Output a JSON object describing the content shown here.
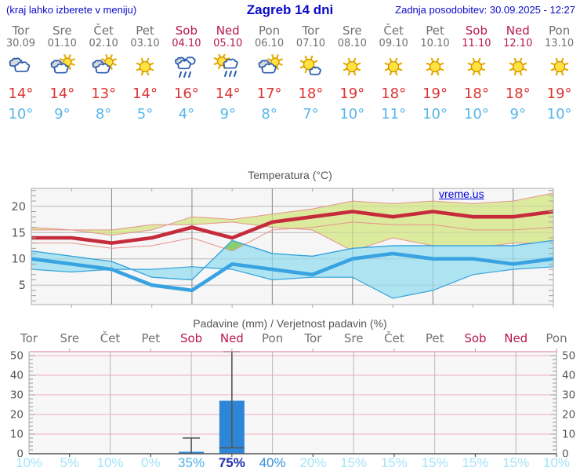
{
  "header": {
    "left_note": "(kraj lahko izberete v meniju)",
    "title": "Zagreb 14 dni",
    "updated": "Zadnja posodobitev: 30.09.2025 - 12:27"
  },
  "colors": {
    "header_blue": "#0a0ac8",
    "day_gray": "#707070",
    "weekend_crimson": "#b81650",
    "temp_high_red": "#dd3333",
    "temp_low_blue": "#56b6ea",
    "line_red": "#c62b3c",
    "line_blue": "#39a3e2",
    "band_green": "#dcea9e",
    "band_green_edge": "#e6938d",
    "band_cyan": "#aee4f2",
    "band_cyan_edge": "#35a2dc",
    "overlap_green": "#86cf72",
    "bar_blue": "#2e86d8",
    "whisker_gray": "#555555",
    "grid_pink": "#f2afc1",
    "grid_gray": "#9a9a9a"
  },
  "forecast_days": [
    {
      "day": "Tor",
      "date": "30.09",
      "weekend": false,
      "icon": "cloudy",
      "high": "14°",
      "low": "10°"
    },
    {
      "day": "Sre",
      "date": "01.10",
      "weekend": false,
      "icon": "partly-cloudy",
      "high": "14°",
      "low": "9°"
    },
    {
      "day": "Čet",
      "date": "02.10",
      "weekend": false,
      "icon": "partly-cloudy",
      "high": "13°",
      "low": "8°"
    },
    {
      "day": "Pet",
      "date": "03.10",
      "weekend": false,
      "icon": "sunny",
      "high": "14°",
      "low": "5°"
    },
    {
      "day": "Sob",
      "date": "04.10",
      "weekend": true,
      "icon": "rain",
      "high": "16°",
      "low": "4°"
    },
    {
      "day": "Ned",
      "date": "05.10",
      "weekend": true,
      "icon": "sun-rain",
      "high": "14°",
      "low": "9°"
    },
    {
      "day": "Pon",
      "date": "06.10",
      "weekend": false,
      "icon": "partly-cloudy",
      "high": "17°",
      "low": "8°"
    },
    {
      "day": "Tor",
      "date": "07.10",
      "weekend": false,
      "icon": "mostly-sunny",
      "high": "18°",
      "low": "7°"
    },
    {
      "day": "Sre",
      "date": "08.10",
      "weekend": false,
      "icon": "sunny",
      "high": "19°",
      "low": "10°"
    },
    {
      "day": "Čet",
      "date": "09.10",
      "weekend": false,
      "icon": "sunny",
      "high": "18°",
      "low": "11°"
    },
    {
      "day": "Pet",
      "date": "10.10",
      "weekend": false,
      "icon": "sunny",
      "high": "19°",
      "low": "10°"
    },
    {
      "day": "Sob",
      "date": "11.10",
      "weekend": true,
      "icon": "sunny",
      "high": "18°",
      "low": "10°"
    },
    {
      "day": "Ned",
      "date": "12.10",
      "weekend": true,
      "icon": "sunny",
      "high": "18°",
      "low": "9°"
    },
    {
      "day": "Pon",
      "date": "13.10",
      "weekend": false,
      "icon": "sunny",
      "high": "19°",
      "low": "10°"
    }
  ],
  "chart_data": [
    {
      "type": "area",
      "title": "Temperatura (°C)",
      "watermark": "vreme.us",
      "ylabel": "",
      "ylim": [
        1.3,
        23.4
      ],
      "yticks": [
        5,
        10,
        15,
        20
      ],
      "grid": true,
      "x_days": 14,
      "series": [
        {
          "name": "max-temp",
          "values": [
            14,
            14,
            13,
            14,
            16,
            14,
            17,
            18,
            19,
            18,
            19,
            18,
            18,
            19
          ]
        },
        {
          "name": "max-temp-band-upper",
          "values": [
            15.5,
            15.5,
            14.5,
            15.5,
            18,
            17.5,
            18.5,
            19.5,
            21,
            20.5,
            21,
            20.5,
            21,
            22.5
          ]
        },
        {
          "name": "max-temp-band-lower",
          "values": [
            13,
            13,
            12,
            12.5,
            14,
            11.5,
            15.5,
            16,
            17,
            16.5,
            16.5,
            15.5,
            15.5,
            16
          ]
        },
        {
          "name": "min-temp",
          "values": [
            10,
            9,
            8,
            5,
            4,
            9,
            8,
            7,
            10,
            11,
            10,
            10,
            9,
            10
          ]
        },
        {
          "name": "min-temp-band-upper",
          "values": [
            11.5,
            10.5,
            9.5,
            6.5,
            6,
            13.5,
            11,
            10.5,
            12,
            12.5,
            12.5,
            12.5,
            12.5,
            13.5
          ]
        },
        {
          "name": "min-temp-band-lower",
          "values": [
            8.5,
            8,
            7,
            4,
            2.5,
            6.5,
            6.5,
            6,
            8,
            8.5,
            8,
            8,
            7.5,
            8
          ]
        }
      ]
    },
    {
      "type": "bar",
      "title": "Padavine (mm) / Verjetnost padavin (%)",
      "categories": [
        "Tor",
        "Sre",
        "Čet",
        "Pet",
        "Sob",
        "Ned",
        "Pon",
        "Tor",
        "Sre",
        "Čet",
        "Pet",
        "Sob",
        "Ned",
        "Pon"
      ],
      "weekend_flags": [
        false,
        false,
        false,
        false,
        true,
        true,
        false,
        false,
        false,
        false,
        false,
        true,
        true,
        false
      ],
      "values": [
        0,
        0,
        0,
        0,
        1,
        27,
        0,
        0,
        0,
        0,
        0,
        0,
        0,
        0
      ],
      "whisker_high": [
        null,
        null,
        null,
        null,
        8,
        52,
        null,
        null,
        null,
        null,
        null,
        null,
        null,
        null
      ],
      "median": [
        null,
        null,
        null,
        null,
        null,
        3,
        null,
        null,
        null,
        null,
        null,
        null,
        null,
        null
      ],
      "ylim": [
        0,
        52
      ],
      "yticks": [
        0,
        10,
        20,
        30,
        40,
        50
      ],
      "probabilities": [
        "10%",
        "5%",
        "10%",
        "0%",
        "35%",
        "75%",
        "40%",
        "20%",
        "15%",
        "15%",
        "15%",
        "15%",
        "15%",
        "10%"
      ],
      "prob_colors": [
        "#a5e3f7",
        "#a5e3f7",
        "#a5e3f7",
        "#a5e3f7",
        "#4ab3e6",
        "#1f2dad",
        "#3a8fd9",
        "#a5e3f7",
        "#a5e3f7",
        "#a5e3f7",
        "#a5e3f7",
        "#a5e3f7",
        "#a5e3f7",
        "#a5e3f7"
      ]
    }
  ]
}
